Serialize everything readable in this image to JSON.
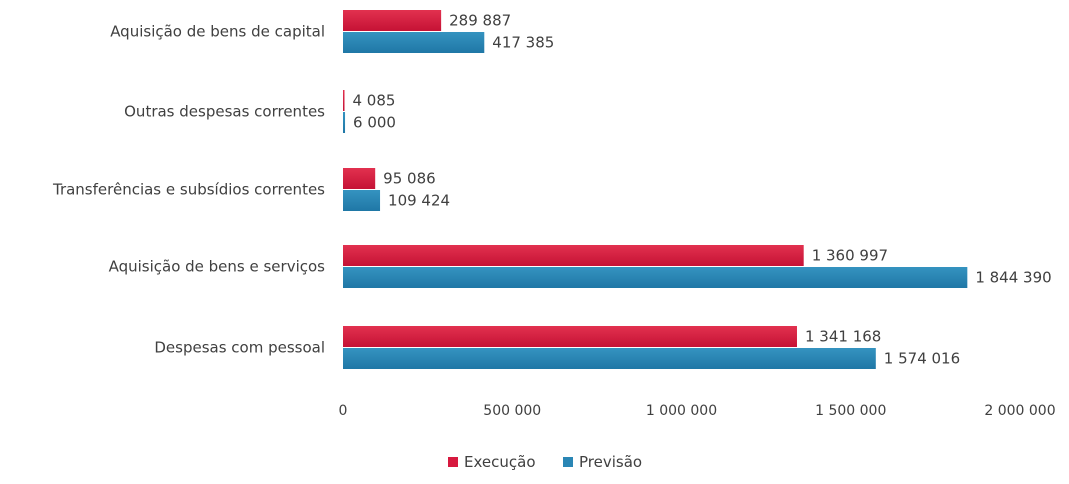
{
  "chart_data": {
    "type": "bar",
    "orientation": "horizontal",
    "title": "",
    "xlabel": "",
    "ylabel": "",
    "categories": [
      "Aquisição de bens de capital",
      "Outras despesas correntes",
      "Transferências e subsídios correntes",
      "Aquisição de bens e serviços",
      "Despesas com pessoal"
    ],
    "series": [
      {
        "name": "Execução",
        "color": "#d7193f",
        "values": [
          289887,
          4085,
          95086,
          1360997,
          1341168
        ],
        "labels": [
          "289 887",
          "4 085",
          "95 086",
          "1 360 997",
          "1 341 168"
        ]
      },
      {
        "name": "Previsão",
        "color": "#2a86b5",
        "values": [
          417385,
          6000,
          109424,
          1844390,
          1574016
        ],
        "labels": [
          "417 385",
          "6 000",
          "109 424",
          "1 844 390",
          "1 574 016"
        ]
      }
    ],
    "xlim": [
      0,
      2000000
    ],
    "xticks": [
      0,
      500000,
      1000000,
      1500000,
      2000000
    ],
    "xtick_labels": [
      "0",
      "500 000",
      "1 000 000",
      "1 500 000",
      "2 000 000"
    ],
    "grid": false,
    "legend_position": "bottom"
  }
}
